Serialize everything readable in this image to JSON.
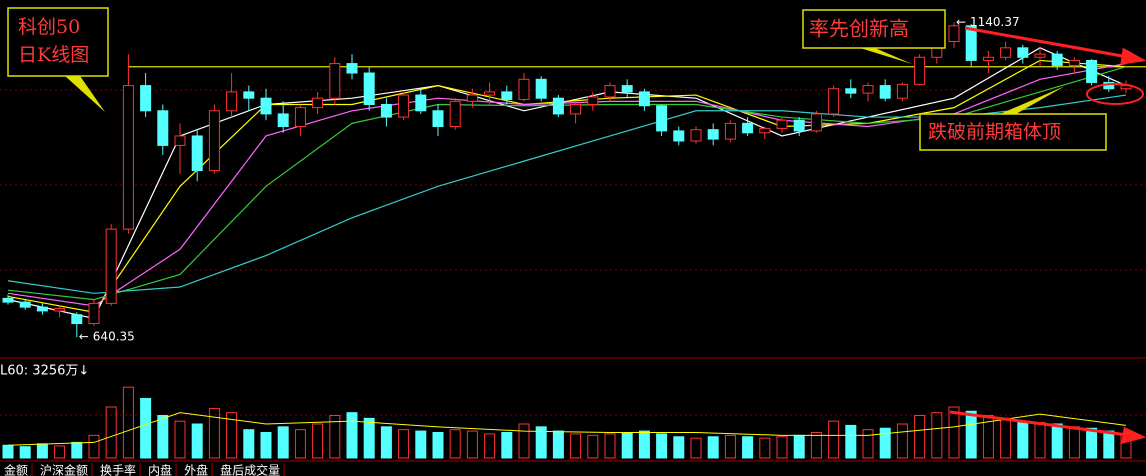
{
  "chart_data": {
    "type": "candlestick",
    "annotations": {
      "title_lines": [
        "科创50",
        "日K线图"
      ],
      "new_high": "率先创新高",
      "break_box": "跌破前期箱体顶"
    },
    "ylim": [
      612,
      1176
    ],
    "box_top": 1070,
    "candles": [
      [
        702,
        708,
        692,
        696
      ],
      [
        696,
        700,
        684,
        688
      ],
      [
        688,
        694,
        676,
        682
      ],
      [
        682,
        690,
        672,
        686
      ],
      [
        676,
        680,
        640.35,
        662
      ],
      [
        662,
        700,
        658,
        694
      ],
      [
        694,
        820,
        690,
        812
      ],
      [
        812,
        1090,
        805,
        1040
      ],
      [
        1040,
        1060,
        990,
        1000
      ],
      [
        1000,
        1010,
        930,
        945
      ],
      [
        945,
        980,
        900,
        960
      ],
      [
        960,
        970,
        888,
        905
      ],
      [
        905,
        1010,
        900,
        1000
      ],
      [
        1000,
        1060,
        990,
        1030
      ],
      [
        1030,
        1040,
        1000,
        1020
      ],
      [
        1020,
        1035,
        985,
        995
      ],
      [
        995,
        1015,
        965,
        975
      ],
      [
        975,
        1010,
        960,
        1005
      ],
      [
        1005,
        1030,
        995,
        1020
      ],
      [
        1020,
        1085,
        1010,
        1075
      ],
      [
        1075,
        1090,
        1050,
        1060
      ],
      [
        1060,
        1070,
        1000,
        1010
      ],
      [
        1010,
        1020,
        975,
        990
      ],
      [
        990,
        1030,
        985,
        1025
      ],
      [
        1025,
        1035,
        995,
        1000
      ],
      [
        1000,
        1010,
        960,
        975
      ],
      [
        975,
        1020,
        970,
        1015
      ],
      [
        1015,
        1035,
        1005,
        1025
      ],
      [
        1025,
        1045,
        1010,
        1030
      ],
      [
        1030,
        1040,
        1010,
        1018
      ],
      [
        1018,
        1060,
        1015,
        1050
      ],
      [
        1050,
        1055,
        1015,
        1020
      ],
      [
        1020,
        1025,
        990,
        995
      ],
      [
        995,
        1015,
        980,
        1010
      ],
      [
        1010,
        1030,
        1000,
        1022
      ],
      [
        1022,
        1045,
        1015,
        1040
      ],
      [
        1040,
        1050,
        1020,
        1030
      ],
      [
        1030,
        1035,
        1000,
        1008
      ],
      [
        1008,
        1010,
        960,
        968
      ],
      [
        968,
        975,
        945,
        952
      ],
      [
        952,
        975,
        948,
        970
      ],
      [
        970,
        980,
        945,
        955
      ],
      [
        955,
        985,
        950,
        980
      ],
      [
        980,
        990,
        960,
        965
      ],
      [
        965,
        975,
        955,
        972
      ],
      [
        972,
        990,
        965,
        985
      ],
      [
        985,
        990,
        960,
        968
      ],
      [
        968,
        1000,
        965,
        995
      ],
      [
        995,
        1040,
        990,
        1035
      ],
      [
        1035,
        1050,
        1020,
        1028
      ],
      [
        1028,
        1045,
        1015,
        1040
      ],
      [
        1040,
        1050,
        1015,
        1020
      ],
      [
        1020,
        1045,
        1015,
        1042
      ],
      [
        1042,
        1090,
        1040,
        1085
      ],
      [
        1085,
        1120,
        1075,
        1110
      ],
      [
        1110,
        1140.37,
        1100,
        1135
      ],
      [
        1135,
        1138,
        1070,
        1080
      ],
      [
        1080,
        1095,
        1060,
        1085
      ],
      [
        1085,
        1110,
        1080,
        1100
      ],
      [
        1100,
        1105,
        1075,
        1085
      ],
      [
        1085,
        1100,
        1070,
        1090
      ],
      [
        1090,
        1095,
        1065,
        1072
      ],
      [
        1072,
        1085,
        1060,
        1080
      ],
      [
        1080,
        1082,
        1040,
        1045
      ],
      [
        1045,
        1055,
        1030,
        1035
      ],
      [
        1035,
        1048,
        1028,
        1040
      ]
    ],
    "ma_index": [
      0,
      5,
      10,
      15,
      20,
      25,
      30,
      35,
      40,
      45,
      50,
      55,
      60,
      65
    ],
    "ma_series": [
      {
        "color": "#ffffff",
        "values": [
          700,
          670,
          960,
          1010,
          1020,
          1040,
          1000,
          1030,
          1020,
          960,
          990,
          1020,
          1100,
          1040
        ]
      },
      {
        "color": "#ffff00",
        "values": [
          705,
          680,
          880,
          1010,
          1010,
          1040,
          1010,
          1020,
          1025,
          975,
          980,
          1005,
          1080,
          1070
        ]
      },
      {
        "color": "#ff66ff",
        "values": [
          710,
          690,
          780,
          960,
          1000,
          1020,
          1010,
          1015,
          1015,
          985,
          975,
          995,
          1050,
          1075
        ]
      },
      {
        "color": "#33cc33",
        "values": [
          715,
          700,
          740,
          880,
          980,
          1010,
          1008,
          1010,
          1010,
          990,
          980,
          990,
          1030,
          1070
        ]
      },
      {
        "color": "#33cccc",
        "values": [
          730,
          710,
          720,
          770,
          830,
          880,
          920,
          960,
          1000,
          1000,
          990,
          990,
          1005,
          1025
        ]
      }
    ],
    "volume_label": "L60: 3256万↓",
    "vol_ylim": [
      0,
      6000
    ],
    "volumes": [
      900,
      800,
      1000,
      850,
      1100,
      1600,
      3600,
      5000,
      4200,
      3000,
      2600,
      2400,
      3500,
      3200,
      2000,
      1800,
      2200,
      2000,
      2400,
      3000,
      3200,
      2800,
      2200,
      2000,
      1900,
      1800,
      2000,
      1900,
      1700,
      1800,
      2400,
      2200,
      1900,
      1700,
      1600,
      1700,
      1800,
      1900,
      1700,
      1500,
      1400,
      1500,
      1600,
      1500,
      1400,
      1500,
      1600,
      1800,
      2600,
      2300,
      2000,
      2100,
      2400,
      3000,
      3200,
      3600,
      3300,
      3000,
      2800,
      2600,
      2500,
      2400,
      2200,
      2100,
      1900,
      1700
    ],
    "vol_ma": {
      "color": "#ffff00",
      "values": [
        900,
        1100,
        3200,
        2400,
        2600,
        2200,
        1900,
        1800,
        1800,
        1600,
        1600,
        2200,
        3100,
        2300
      ]
    },
    "up_color": "#ff3232",
    "down_color": "#54ffff",
    "tabs": [
      "金额",
      "沪深金额",
      "换手率",
      "内盘",
      "外盘",
      "盘后成交量"
    ]
  }
}
